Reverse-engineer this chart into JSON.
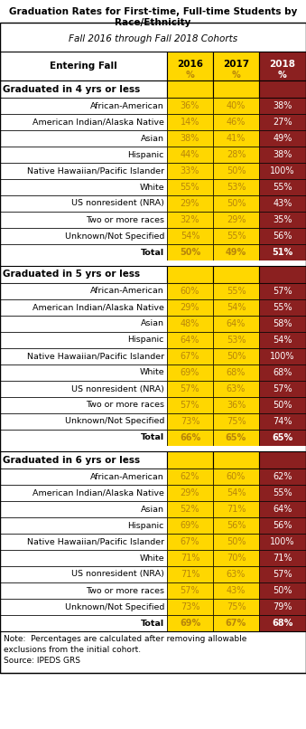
{
  "title1": "Graduation Rates for First-time, Full-time Students by\nRace/Ethnicity",
  "title2": "Fall 2016 through Fall 2018 Cohorts",
  "sections": [
    {
      "header": "Graduated in 4 yrs or less",
      "rows": [
        [
          "African-American",
          "36%",
          "40%",
          "38%"
        ],
        [
          "American Indian/Alaska Native",
          "14%",
          "46%",
          "27%"
        ],
        [
          "Asian",
          "38%",
          "41%",
          "49%"
        ],
        [
          "Hispanic",
          "44%",
          "28%",
          "38%"
        ],
        [
          "Native Hawaiian/Pacific Islander",
          "33%",
          "50%",
          "100%"
        ],
        [
          "White",
          "55%",
          "53%",
          "55%"
        ],
        [
          "US nonresident (NRA)",
          "29%",
          "50%",
          "43%"
        ],
        [
          "Two or more races",
          "32%",
          "29%",
          "35%"
        ],
        [
          "Unknown/Not Specified",
          "54%",
          "55%",
          "56%"
        ],
        [
          "Total",
          "50%",
          "49%",
          "51%"
        ]
      ]
    },
    {
      "header": "Graduated in 5 yrs or less",
      "rows": [
        [
          "African-American",
          "60%",
          "55%",
          "57%"
        ],
        [
          "American Indian/Alaska Native",
          "29%",
          "54%",
          "55%"
        ],
        [
          "Asian",
          "48%",
          "64%",
          "58%"
        ],
        [
          "Hispanic",
          "64%",
          "53%",
          "54%"
        ],
        [
          "Native Hawaiian/Pacific Islander",
          "67%",
          "50%",
          "100%"
        ],
        [
          "White",
          "69%",
          "68%",
          "68%"
        ],
        [
          "US nonresident (NRA)",
          "57%",
          "63%",
          "57%"
        ],
        [
          "Two or more races",
          "57%",
          "36%",
          "50%"
        ],
        [
          "Unknown/Not Specified",
          "73%",
          "75%",
          "74%"
        ],
        [
          "Total",
          "66%",
          "65%",
          "65%"
        ]
      ]
    },
    {
      "header": "Graduated in 6 yrs or less",
      "rows": [
        [
          "African-American",
          "62%",
          "60%",
          "62%"
        ],
        [
          "American Indian/Alaska Native",
          "29%",
          "54%",
          "55%"
        ],
        [
          "Asian",
          "52%",
          "71%",
          "64%"
        ],
        [
          "Hispanic",
          "69%",
          "56%",
          "56%"
        ],
        [
          "Native Hawaiian/Pacific Islander",
          "67%",
          "50%",
          "100%"
        ],
        [
          "White",
          "71%",
          "70%",
          "71%"
        ],
        [
          "US nonresident (NRA)",
          "71%",
          "63%",
          "57%"
        ],
        [
          "Two or more races",
          "57%",
          "43%",
          "50%"
        ],
        [
          "Unknown/Not Specified",
          "73%",
          "75%",
          "79%"
        ],
        [
          "Total",
          "69%",
          "67%",
          "68%"
        ]
      ]
    }
  ],
  "footer_lines": [
    "Note:  Percentages are calculated after removing allowable",
    "exclusions from the initial cohort.",
    "Source: IPEDS GRS"
  ],
  "yellow": "#FFD700",
  "dark_red": "#8B2020",
  "gold_text": "#B8860B",
  "white": "#FFFFFF",
  "black": "#000000",
  "title_bg": "#FFFFFF"
}
